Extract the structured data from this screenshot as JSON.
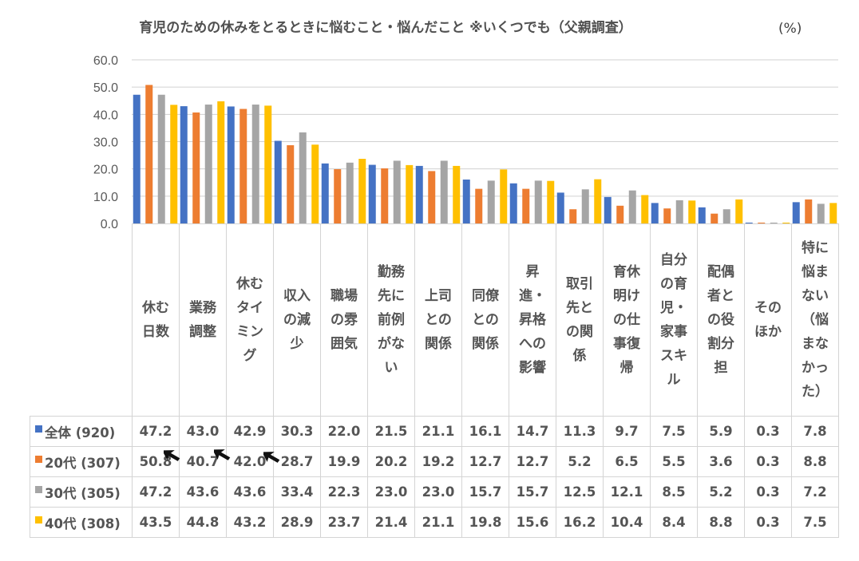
{
  "chart_data": {
    "type": "bar",
    "title": "育児のための休みをとるときに悩むこと・悩んだこと ※いくつでも（父親調査）",
    "unit_label": "(%)",
    "xlabel": "",
    "ylabel": "",
    "ylim": [
      0,
      60
    ],
    "yticks": [
      "0.0",
      "10.0",
      "20.0",
      "30.0",
      "40.0",
      "50.0",
      "60.0"
    ],
    "grid": true,
    "legend_placement": "table-left",
    "categories": [
      "休む日数",
      "業務調整",
      "休むタイミング",
      "収入の減少",
      "職場の雰囲気",
      "勤務先に前例がない",
      "上司との関係",
      "同僚との関係",
      "昇進・昇格への影響",
      "取引先との関係",
      "育休明けの仕事復帰",
      "自分の育児・家事スキル",
      "配偶者との役割分担",
      "そのほか",
      "特に悩まない（悩まなかった）"
    ],
    "series": [
      {
        "name": "全体 (920)",
        "color": "#4472c4",
        "values": [
          47.2,
          43.0,
          42.9,
          30.3,
          22.0,
          21.5,
          21.1,
          16.1,
          14.7,
          11.3,
          9.7,
          7.5,
          5.9,
          0.3,
          7.8
        ]
      },
      {
        "name": "20代 (307)",
        "color": "#ed7d31",
        "values": [
          50.8,
          40.7,
          42.0,
          28.7,
          19.9,
          20.2,
          19.2,
          12.7,
          12.7,
          5.2,
          6.5,
          5.5,
          3.6,
          0.3,
          8.8
        ]
      },
      {
        "name": "30代 (305)",
        "color": "#a5a5a5",
        "values": [
          47.2,
          43.6,
          43.6,
          33.4,
          22.3,
          23.0,
          23.0,
          15.7,
          15.7,
          12.5,
          12.1,
          8.5,
          5.2,
          0.3,
          7.2
        ]
      },
      {
        "name": "40代 (308)",
        "color": "#ffc000",
        "values": [
          43.5,
          44.8,
          43.2,
          28.9,
          23.7,
          21.4,
          21.1,
          19.8,
          15.6,
          16.2,
          10.4,
          8.4,
          8.8,
          0.3,
          7.5
        ]
      }
    ]
  },
  "cursors": [
    {
      "icon": "mouse-pointer-icon",
      "near": "休む日数"
    },
    {
      "icon": "mouse-pointer-icon",
      "near": "業務調整"
    },
    {
      "icon": "mouse-pointer-icon",
      "near": "休むタイミング"
    }
  ]
}
